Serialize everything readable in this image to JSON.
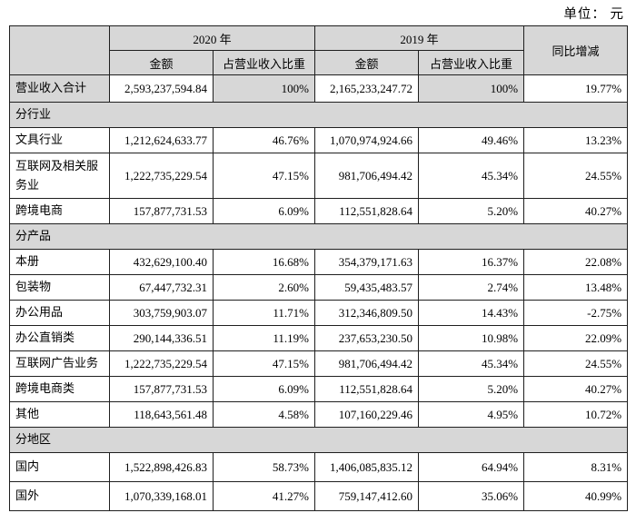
{
  "unit_note": "单位： 元",
  "table": {
    "header": {
      "year_2020": "2020 年",
      "year_2019": "2019 年",
      "yoy": "同比增减",
      "amount": "金额",
      "share": "占营业收入比重"
    },
    "rows": [
      {
        "type": "total",
        "label": "营业收入合计",
        "amount_2020": "2,593,237,594.84",
        "share_2020": "100%",
        "amount_2019": "2,165,233,247.72",
        "share_2019": "100%",
        "yoy": "19.77%"
      },
      {
        "type": "section",
        "label": "分行业"
      },
      {
        "type": "data",
        "label": "文具行业",
        "amount_2020": "1,212,624,633.77",
        "share_2020": "46.76%",
        "amount_2019": "1,070,974,924.66",
        "share_2019": "49.46%",
        "yoy": "13.23%"
      },
      {
        "type": "data",
        "label": "互联网及相关服务业",
        "amount_2020": "1,222,735,229.54",
        "share_2020": "47.15%",
        "amount_2019": "981,706,494.42",
        "share_2019": "45.34%",
        "yoy": "24.55%"
      },
      {
        "type": "data",
        "label": "跨境电商",
        "amount_2020": "157,877,731.53",
        "share_2020": "6.09%",
        "amount_2019": "112,551,828.64",
        "share_2019": "5.20%",
        "yoy": "40.27%"
      },
      {
        "type": "section",
        "label": "分产品"
      },
      {
        "type": "data",
        "label": "本册",
        "amount_2020": "432,629,100.40",
        "share_2020": "16.68%",
        "amount_2019": "354,379,171.63",
        "share_2019": "16.37%",
        "yoy": "22.08%"
      },
      {
        "type": "data",
        "label": "包装物",
        "amount_2020": "67,447,732.31",
        "share_2020": "2.60%",
        "amount_2019": "59,435,483.57",
        "share_2019": "2.74%",
        "yoy": "13.48%"
      },
      {
        "type": "data",
        "label": "办公用品",
        "amount_2020": "303,759,903.07",
        "share_2020": "11.71%",
        "amount_2019": "312,346,809.50",
        "share_2019": "14.43%",
        "yoy": "-2.75%"
      },
      {
        "type": "data",
        "label": "办公直销类",
        "amount_2020": "290,144,336.51",
        "share_2020": "11.19%",
        "amount_2019": "237,653,230.50",
        "share_2019": "10.98%",
        "yoy": "22.09%"
      },
      {
        "type": "data",
        "label": "互联网广告业务",
        "amount_2020": "1,222,735,229.54",
        "share_2020": "47.15%",
        "amount_2019": "981,706,494.42",
        "share_2019": "45.34%",
        "yoy": "24.55%"
      },
      {
        "type": "data",
        "label": "跨境电商类",
        "amount_2020": "157,877,731.53",
        "share_2020": "6.09%",
        "amount_2019": "112,551,828.64",
        "share_2019": "5.20%",
        "yoy": "40.27%"
      },
      {
        "type": "data",
        "label": "其他",
        "amount_2020": "118,643,561.48",
        "share_2020": "4.58%",
        "amount_2019": "107,160,229.46",
        "share_2019": "4.95%",
        "yoy": "10.72%"
      },
      {
        "type": "section",
        "label": "分地区"
      },
      {
        "type": "data",
        "label": "国内",
        "amount_2020": "1,522,898,426.83",
        "share_2020": "58.73%",
        "amount_2019": "1,406,085,835.12",
        "share_2019": "64.94%",
        "yoy": "8.31%"
      },
      {
        "type": "data",
        "label": "国外",
        "amount_2020": "1,070,339,168.01",
        "share_2020": "41.27%",
        "amount_2019": "759,147,412.60",
        "share_2019": "35.06%",
        "yoy": "40.99%"
      }
    ]
  }
}
